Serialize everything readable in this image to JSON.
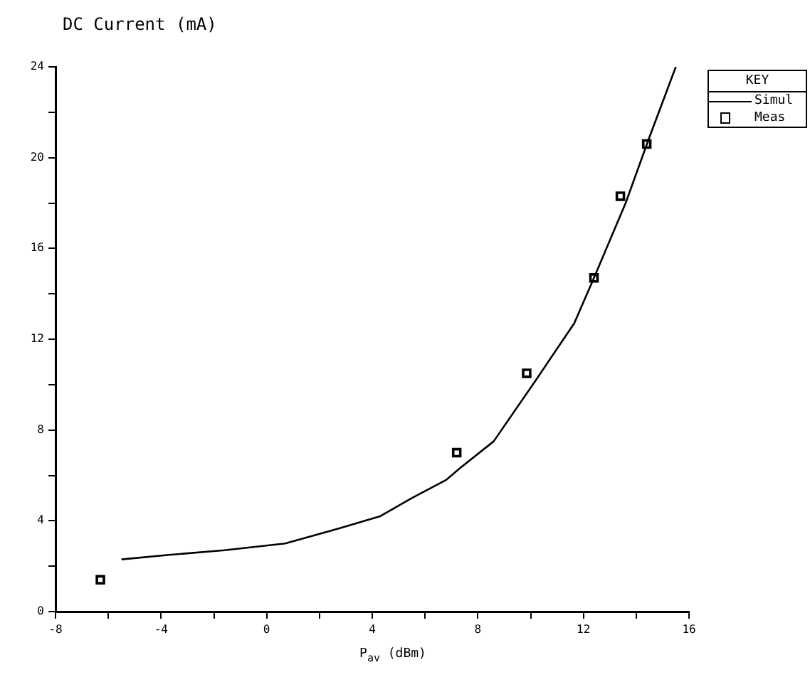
{
  "chart_data": {
    "type": "line",
    "ylabel": "DC Current (mA)",
    "xlabel": "P$_{av}$ (dBm)",
    "legend_title": "KEY",
    "legend": "top right",
    "grid": false,
    "xlim": [
      -8,
      16
    ],
    "xticks": [
      -8,
      {
        "value": -6,
        "label": null
      },
      -4,
      {
        "value": -2,
        "label": null
      },
      0,
      {
        "value": 2,
        "label": null
      },
      4,
      {
        "value": 6,
        "label": null
      },
      8,
      {
        "value": 10,
        "label": null
      },
      12,
      {
        "value": 14,
        "label": null
      },
      16
    ],
    "ylim": [
      0,
      24
    ],
    "yticks": [
      0,
      {
        "value": 2,
        "label": null
      },
      4,
      {
        "value": 6,
        "label": null
      },
      8,
      {
        "value": 10,
        "label": null
      },
      12,
      {
        "value": 14,
        "label": null
      },
      16,
      {
        "value": 18,
        "label": null
      },
      20,
      {
        "value": 22,
        "label": null
      },
      24
    ],
    "series": [
      {
        "name": "Simul",
        "color": "#000000",
        "marker": "none",
        "line_style": "solid",
        "x": [
          -5.5,
          -3.7,
          -1.6,
          0.7,
          2.7,
          4.3,
          5.5,
          6.8,
          7.3,
          8.6,
          10.2,
          11.65,
          12.4,
          13.6,
          14.5,
          15.5
        ],
        "values": [
          2.3,
          2.5,
          2.7,
          3.0,
          3.65,
          4.2,
          5.0,
          5.8,
          6.3,
          7.5,
          10.2,
          12.7,
          14.7,
          18.0,
          20.9,
          24.0
        ]
      },
      {
        "name": "Meas",
        "type": "scatter",
        "color": "#000000",
        "marker": "square",
        "x": [
          -6.3,
          7.2,
          9.85,
          12.4,
          13.4,
          14.4
        ],
        "values": [
          1.4,
          7.0,
          10.5,
          14.7,
          18.3,
          20.6
        ]
      }
    ]
  }
}
